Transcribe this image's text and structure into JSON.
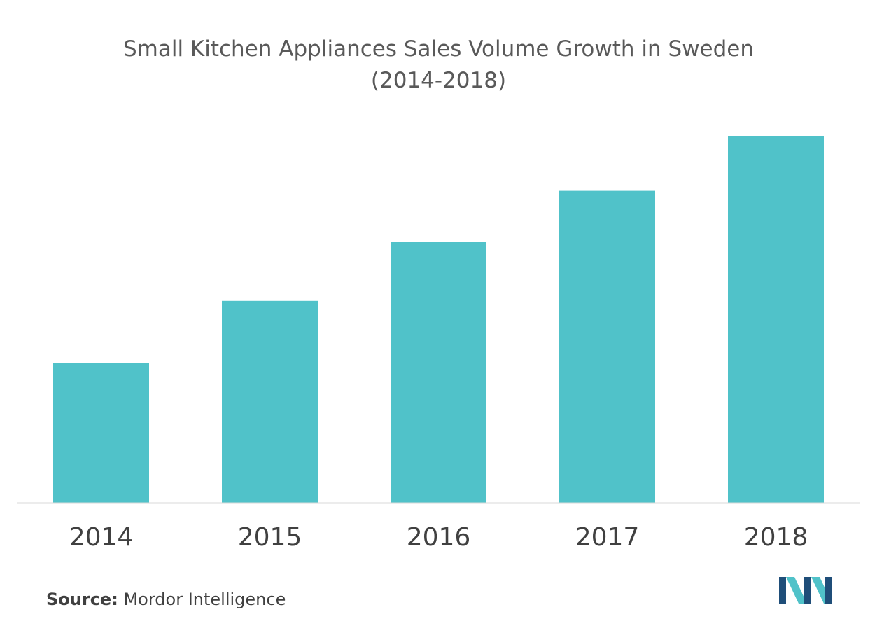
{
  "title_line_1": "Small Kitchen Appliances Sales Volume Growth in Sweden",
  "title_line_2": "(2014-2018)",
  "source": {
    "label": "Source:",
    "text": "Mordor Intelligence"
  },
  "colors": {
    "bar": "#50C2C9",
    "axis": "#D9D9D9",
    "tick_text": "#404040",
    "title_text": "#595959",
    "logo_dark": "#1F4E79",
    "logo_light": "#50C2C9"
  },
  "logo": {
    "icon": "mordor-intelligence-logo"
  },
  "chart_data": {
    "type": "bar",
    "categories": [
      "2014",
      "2015",
      "2016",
      "2017",
      "2018"
    ],
    "values": [
      38,
      55,
      71,
      85,
      100
    ],
    "ylim": [
      0,
      100
    ],
    "grid": false,
    "legend": "none",
    "xlabel": "",
    "ylabel": ""
  }
}
